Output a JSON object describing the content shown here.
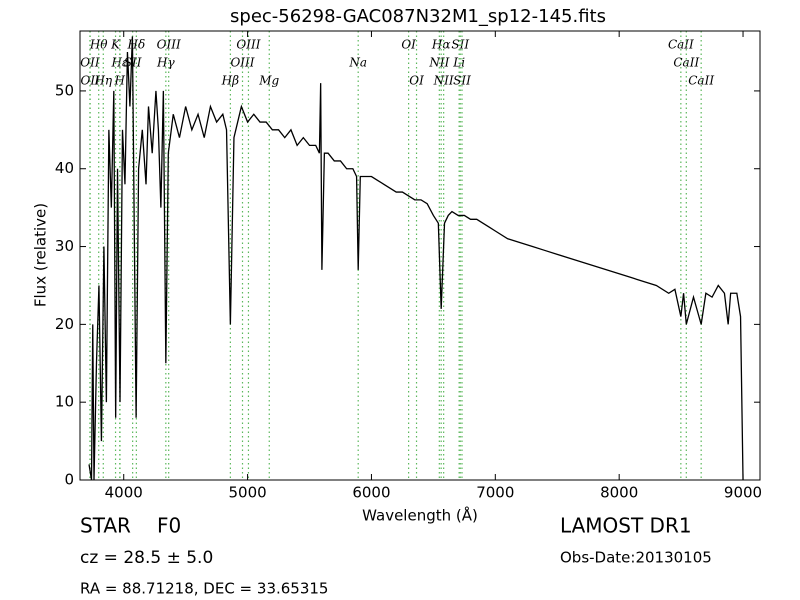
{
  "chart_data": {
    "type": "line",
    "title": "spec-56298-GAC087N32M1_sp12-145.fits",
    "xlabel": "Wavelength (Å)",
    "ylabel": "Flux (relative)",
    "color": "#000000",
    "annotation_color": "#5cb85c",
    "xlim": [
      3647,
      9137
    ],
    "ylim": [
      0,
      57.7
    ],
    "xticks": [
      4000,
      5000,
      6000,
      7000,
      8000,
      9000
    ],
    "yticks": [
      0,
      10,
      20,
      30,
      40,
      50
    ],
    "x": [
      3720,
      3740,
      3750,
      3760,
      3780,
      3800,
      3820,
      3840,
      3860,
      3880,
      3900,
      3920,
      3935,
      3950,
      3970,
      3990,
      4010,
      4030,
      4050,
      4070,
      4100,
      4120,
      4150,
      4180,
      4200,
      4230,
      4260,
      4280,
      4300,
      4320,
      4340,
      4360,
      4400,
      4450,
      4500,
      4550,
      4600,
      4650,
      4700,
      4750,
      4800,
      4830,
      4861,
      4890,
      4950,
      5000,
      5050,
      5100,
      5150,
      5200,
      5250,
      5300,
      5350,
      5400,
      5450,
      5500,
      5550,
      5580,
      5590,
      5600,
      5620,
      5650,
      5700,
      5750,
      5800,
      5850,
      5880,
      5893,
      5910,
      5950,
      6000,
      6050,
      6100,
      6150,
      6200,
      6250,
      6300,
      6350,
      6400,
      6450,
      6500,
      6540,
      6563,
      6590,
      6620,
      6650,
      6700,
      6750,
      6800,
      6850,
      6900,
      6950,
      7000,
      7100,
      7200,
      7300,
      7400,
      7500,
      7600,
      7700,
      7800,
      7900,
      8000,
      8100,
      8200,
      8300,
      8400,
      8450,
      8498,
      8520,
      8542,
      8600,
      8662,
      8700,
      8750,
      8800,
      8850,
      8880,
      8900,
      8950,
      8980,
      9000
    ],
    "y": [
      2,
      0,
      20,
      0,
      15,
      25,
      5,
      30,
      10,
      45,
      35,
      50,
      8,
      40,
      10,
      45,
      38,
      55,
      48,
      57,
      8,
      40,
      45,
      38,
      48,
      42,
      50,
      45,
      35,
      50,
      15,
      42,
      47,
      44,
      48,
      45,
      47,
      44,
      48,
      46,
      47,
      45,
      20,
      44,
      48,
      46,
      47,
      46,
      46,
      45,
      45,
      44,
      45,
      43,
      44,
      43,
      43,
      42,
      51,
      27,
      42,
      42,
      41,
      41,
      40,
      40,
      39,
      27,
      39,
      39,
      39,
      38.5,
      38,
      37.5,
      37,
      37,
      36.5,
      36,
      36,
      35.5,
      34,
      33,
      22,
      33,
      34,
      34.5,
      34,
      34,
      33.5,
      33.5,
      33,
      32.5,
      32,
      31,
      30.5,
      30,
      29.5,
      29,
      28.5,
      28,
      27.5,
      27,
      26.5,
      26,
      25.5,
      25,
      24,
      24.5,
      21,
      24,
      20,
      23.5,
      20,
      24,
      23.5,
      25,
      24,
      20,
      24,
      24,
      21,
      0
    ],
    "annotations": [
      {
        "text": "OII",
        "x": 3727
      },
      {
        "text": "OII",
        "x": 3729
      },
      {
        "text": "Hθ",
        "x": 3798
      },
      {
        "text": "Hη",
        "x": 3835
      },
      {
        "text": "K",
        "x": 3934
      },
      {
        "text": "Hε",
        "x": 3970
      },
      {
        "text": "H",
        "x": 3968
      },
      {
        "text": "SII",
        "x": 4072
      },
      {
        "text": "Hδ",
        "x": 4102
      },
      {
        "text": "OIII",
        "x": 4363
      },
      {
        "text": "Hγ",
        "x": 4340
      },
      {
        "text": "OIII",
        "x": 4959
      },
      {
        "text": "OIII",
        "x": 5007
      },
      {
        "text": "Hβ",
        "x": 4861
      },
      {
        "text": "Mg",
        "x": 5175
      },
      {
        "text": "Na",
        "x": 5893
      },
      {
        "text": "OI",
        "x": 6300
      },
      {
        "text": "OI",
        "x": 6364
      },
      {
        "text": "Hα",
        "x": 6563
      },
      {
        "text": "NII",
        "x": 6548
      },
      {
        "text": "NII",
        "x": 6583
      },
      {
        "text": "SII",
        "x": 6717
      },
      {
        "text": "Li",
        "x": 6708
      },
      {
        "text": "SII",
        "x": 6731
      },
      {
        "text": "CaII",
        "x": 8498
      },
      {
        "text": "CaII",
        "x": 8542
      },
      {
        "text": "CaII",
        "x": 8662
      }
    ]
  },
  "footer": {
    "object": "STAR",
    "class": "F0",
    "cz": "cz = 28.5 ± 5.0",
    "coords": "RA = 88.71218, DEC = 33.65315",
    "survey": "LAMOST DR1",
    "obs_date": "Obs-Date:20130105"
  }
}
